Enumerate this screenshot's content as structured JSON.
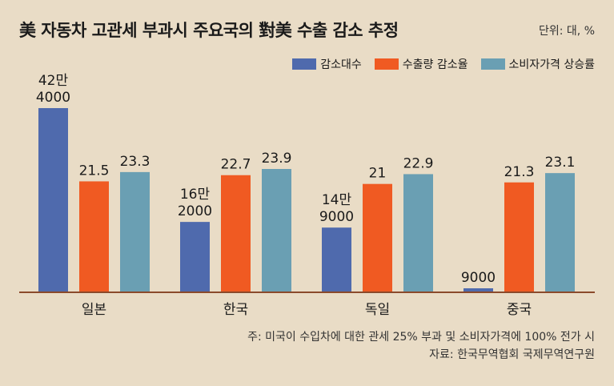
{
  "title": "美 자동차 고관세 부과시 주요국의 對美 수출 감소 추정",
  "unit": "단위: 대, %",
  "note": "주: 미국이 수입차에 대한 관세 25% 부과 및 소비자가격에 100% 전가 시",
  "source": "자료: 한국무역협회 국제무역연구원",
  "chart_data": {
    "type": "bar",
    "categories": [
      "일본",
      "한국",
      "독일",
      "중국"
    ],
    "series": [
      {
        "name": "감소대수",
        "color": "#4f6aad",
        "values": [
          424000,
          162000,
          149000,
          9000
        ],
        "labels": [
          "42만\n4000",
          "16만\n2000",
          "14만\n9000",
          "9000"
        ]
      },
      {
        "name": "수출량 감소율",
        "color": "#f05a22",
        "values": [
          21.5,
          22.7,
          21,
          21.3
        ],
        "labels": [
          "21.5",
          "22.7",
          "21",
          "21.3"
        ]
      },
      {
        "name": "소비자가격 상승률",
        "color": "#6a9fb3",
        "values": [
          23.3,
          23.9,
          22.9,
          23.1
        ],
        "labels": [
          "23.3",
          "23.9",
          "22.9",
          "23.1"
        ]
      }
    ],
    "legend_position": "top-right",
    "grid": false
  }
}
